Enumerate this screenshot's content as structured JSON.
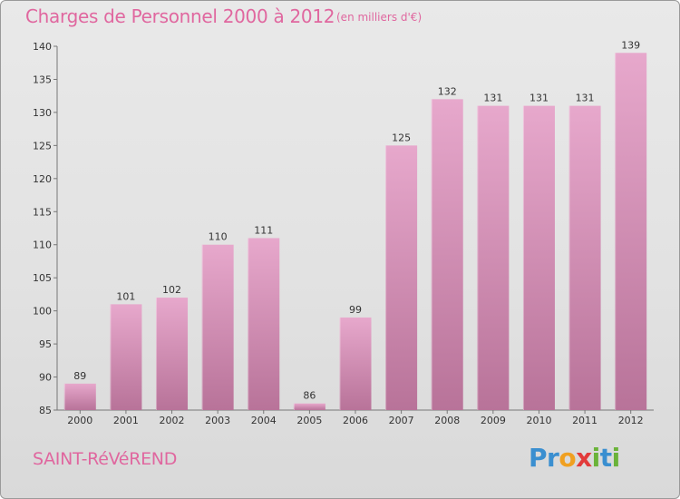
{
  "header": {
    "title": "Charges de Personnel 2000 à 2012",
    "subtitle": "(en milliers d'€)"
  },
  "footer": {
    "city": "SAINT-RéVéREND",
    "brand_letters": [
      {
        "ch": "P",
        "color": "#3a8fd0"
      },
      {
        "ch": "r",
        "color": "#3a8fd0"
      },
      {
        "ch": "o",
        "color": "#f0a020"
      },
      {
        "ch": "x",
        "color": "#e23a3a"
      },
      {
        "ch": "i",
        "color": "#6bb33a"
      },
      {
        "ch": "t",
        "color": "#3a8fd0"
      },
      {
        "ch": "i",
        "color": "#6bb33a"
      }
    ]
  },
  "colors": {
    "bar_top": "#e7a8cc",
    "bar_bottom": "#b87399",
    "accent": "#e0679f"
  },
  "chart_data": {
    "type": "bar",
    "title": "Charges de Personnel 2000 à 2012",
    "subtitle": "(en milliers d'€)",
    "xlabel": "",
    "ylabel": "",
    "categories": [
      "2000",
      "2001",
      "2002",
      "2003",
      "2004",
      "2005",
      "2006",
      "2007",
      "2008",
      "2009",
      "2010",
      "2011",
      "2012"
    ],
    "values": [
      89,
      101,
      102,
      110,
      111,
      86,
      99,
      125,
      132,
      131,
      131,
      131,
      139
    ],
    "ylim": [
      85,
      140
    ],
    "yticks": [
      85,
      90,
      95,
      100,
      105,
      110,
      115,
      120,
      125,
      130,
      135,
      140
    ],
    "grid": false,
    "legend": "none"
  }
}
